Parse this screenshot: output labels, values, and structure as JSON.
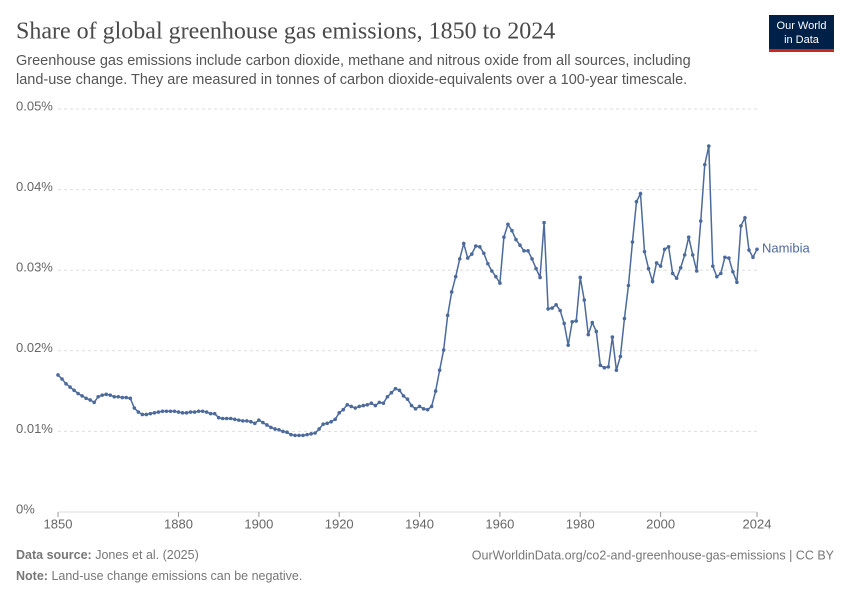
{
  "chart_data": {
    "type": "line",
    "title": "Share of global greenhouse gas emissions, 1850 to 2024",
    "subtitle": [
      "Greenhouse gas emissions include carbon dioxide, methane and nitrous oxide from all sources, including",
      "land-use change. They are measured in tonnes of carbon dioxide-equivalents over a 100-year timescale."
    ],
    "logo": [
      "Our World",
      "in Data"
    ],
    "source_label": "Data source:",
    "source": "Jones et al. (2025)",
    "note_label": "Note:",
    "note": "Land-use change emissions can be negative.",
    "url": "OurWorldinData.org/co2-and-greenhouse-gas-emissions | CC BY",
    "x": [
      1850,
      1851,
      1852,
      1853,
      1854,
      1855,
      1856,
      1857,
      1858,
      1859,
      1860,
      1861,
      1862,
      1863,
      1864,
      1865,
      1866,
      1867,
      1868,
      1869,
      1870,
      1871,
      1872,
      1873,
      1874,
      1875,
      1876,
      1877,
      1878,
      1879,
      1880,
      1881,
      1882,
      1883,
      1884,
      1885,
      1886,
      1887,
      1888,
      1889,
      1890,
      1891,
      1892,
      1893,
      1894,
      1895,
      1896,
      1897,
      1898,
      1899,
      1900,
      1901,
      1902,
      1903,
      1904,
      1905,
      1906,
      1907,
      1908,
      1909,
      1910,
      1911,
      1912,
      1913,
      1914,
      1915,
      1916,
      1917,
      1918,
      1919,
      1920,
      1921,
      1922,
      1923,
      1924,
      1925,
      1926,
      1927,
      1928,
      1929,
      1930,
      1931,
      1932,
      1933,
      1934,
      1935,
      1936,
      1937,
      1938,
      1939,
      1940,
      1941,
      1942,
      1943,
      1944,
      1945,
      1946,
      1947,
      1948,
      1949,
      1950,
      1951,
      1952,
      1953,
      1954,
      1955,
      1956,
      1957,
      1958,
      1959,
      1960,
      1961,
      1962,
      1963,
      1964,
      1965,
      1966,
      1967,
      1968,
      1969,
      1970,
      1971,
      1972,
      1973,
      1974,
      1975,
      1976,
      1977,
      1978,
      1979,
      1980,
      1981,
      1982,
      1983,
      1984,
      1985,
      1986,
      1987,
      1988,
      1989,
      1990,
      1991,
      1992,
      1993,
      1994,
      1995,
      1996,
      1997,
      1998,
      1999,
      2000,
      2001,
      2002,
      2003,
      2004,
      2005,
      2006,
      2007,
      2008,
      2009,
      2010,
      2011,
      2012,
      2013,
      2014,
      2015,
      2016,
      2017,
      2018,
      2019,
      2020,
      2021,
      2022,
      2023,
      2024
    ],
    "series": [
      {
        "name": "Namibia",
        "color": "#4c6a9c",
        "values": [
          0.017,
          0.0165,
          0.0159,
          0.0155,
          0.0151,
          0.0147,
          0.0144,
          0.0141,
          0.0139,
          0.0136,
          0.0143,
          0.0145,
          0.0146,
          0.0145,
          0.0143,
          0.0143,
          0.0142,
          0.0142,
          0.0141,
          0.0129,
          0.0124,
          0.0121,
          0.0121,
          0.0122,
          0.0123,
          0.0124,
          0.0125,
          0.0125,
          0.0125,
          0.0125,
          0.0124,
          0.0123,
          0.0123,
          0.0124,
          0.0124,
          0.0125,
          0.0125,
          0.0124,
          0.0122,
          0.0122,
          0.0117,
          0.0116,
          0.0116,
          0.0116,
          0.0115,
          0.0114,
          0.0113,
          0.0113,
          0.0112,
          0.011,
          0.0114,
          0.0111,
          0.0108,
          0.0105,
          0.0103,
          0.0102,
          0.01,
          0.0099,
          0.0096,
          0.0095,
          0.0095,
          0.0095,
          0.0096,
          0.0097,
          0.0098,
          0.0103,
          0.0109,
          0.011,
          0.0112,
          0.0115,
          0.0123,
          0.0127,
          0.0133,
          0.0131,
          0.0129,
          0.0131,
          0.0132,
          0.0133,
          0.0135,
          0.0132,
          0.0136,
          0.0135,
          0.0143,
          0.0148,
          0.0153,
          0.0151,
          0.0144,
          0.014,
          0.0132,
          0.0128,
          0.0131,
          0.0128,
          0.0127,
          0.0131,
          0.015,
          0.0176,
          0.0201,
          0.0244,
          0.0273,
          0.0292,
          0.0314,
          0.0333,
          0.0315,
          0.032,
          0.033,
          0.0329,
          0.0321,
          0.0308,
          0.0299,
          0.0292,
          0.0284,
          0.0341,
          0.0357,
          0.0349,
          0.0338,
          0.0331,
          0.0324,
          0.0324,
          0.0314,
          0.0302,
          0.0291,
          0.0359,
          0.0252,
          0.0253,
          0.0257,
          0.025,
          0.0234,
          0.0207,
          0.0236,
          0.0237,
          0.0291,
          0.0263,
          0.022,
          0.0235,
          0.0224,
          0.0182,
          0.0179,
          0.018,
          0.0217,
          0.0176,
          0.0193,
          0.024,
          0.0281,
          0.0335,
          0.0385,
          0.0395,
          0.0323,
          0.0302,
          0.0286,
          0.0309,
          0.0305,
          0.0326,
          0.0329,
          0.0296,
          0.029,
          0.0303,
          0.0319,
          0.0341,
          0.0319,
          0.0299,
          0.0361,
          0.0431,
          0.0454,
          0.0305,
          0.0292,
          0.0296,
          0.0316,
          0.0315,
          0.0298,
          0.0285,
          0.0355,
          0.0365,
          0.0325,
          0.0316,
          0.0326
        ]
      }
    ],
    "xlim": [
      1850,
      2024
    ],
    "xticks": [
      1850,
      1880,
      1900,
      1920,
      1940,
      1960,
      1980,
      2000,
      2024
    ],
    "ylim": [
      0,
      0.05
    ],
    "yticks": [
      {
        "value": 0,
        "label": "0%"
      },
      {
        "value": 0.01,
        "label": "0.01%"
      },
      {
        "value": 0.02,
        "label": "0.02%"
      },
      {
        "value": 0.03,
        "label": "0.03%"
      },
      {
        "value": 0.04,
        "label": "0.04%"
      },
      {
        "value": 0.05,
        "label": "0.05%"
      }
    ],
    "grid": true
  }
}
